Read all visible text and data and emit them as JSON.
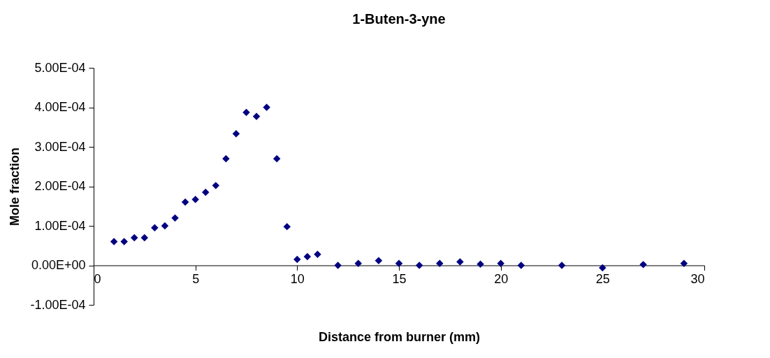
{
  "chart_data": {
    "type": "scatter",
    "title": "1-Buten-3-yne",
    "xlabel": "Distance from burner (mm)",
    "ylabel": "Mole fraction",
    "x": [
      1,
      1.5,
      2,
      2.5,
      3,
      3.5,
      4,
      4.5,
      5,
      5.5,
      6,
      6.5,
      7,
      7.5,
      8,
      8.5,
      9,
      9.5,
      10,
      10.5,
      11,
      12,
      13,
      14,
      15,
      16,
      17,
      18,
      19,
      20,
      21,
      23,
      25,
      27,
      29
    ],
    "series": [
      {
        "color": "#000080",
        "values": [
          6e-05,
          6e-05,
          7e-05,
          7e-05,
          9.5e-05,
          0.0001,
          0.00012,
          0.00016,
          0.000167,
          0.000185,
          0.000202,
          0.00027,
          0.000333,
          0.000387,
          0.000377,
          0.0004,
          0.00027,
          9.8e-05,
          1.5e-05,
          2.2e-05,
          2.8e-05,
          0,
          5e-06,
          1.2e-05,
          5e-06,
          0,
          5e-06,
          9e-06,
          3e-06,
          5e-06,
          0,
          0,
          -6e-06,
          2e-06,
          5e-06
        ]
      }
    ],
    "xlim": [
      0,
      30
    ],
    "xticks": [
      0,
      5,
      10,
      15,
      20,
      25,
      30
    ],
    "ylim": [
      -0.0001,
      0.0005
    ],
    "yticks": [
      {
        "value": -0.0001,
        "label": "-1.00E-04"
      },
      {
        "value": 0,
        "label": "0.00E+00"
      },
      {
        "value": 0.0001,
        "label": "1.00E-04"
      },
      {
        "value": 0.0002,
        "label": "2.00E-04"
      },
      {
        "value": 0.0003,
        "label": "3.00E-04"
      },
      {
        "value": 0.0004,
        "label": "4.00E-04"
      },
      {
        "value": 0.0005,
        "label": "5.00E-04"
      }
    ],
    "marker": "diamond",
    "grid": false
  }
}
